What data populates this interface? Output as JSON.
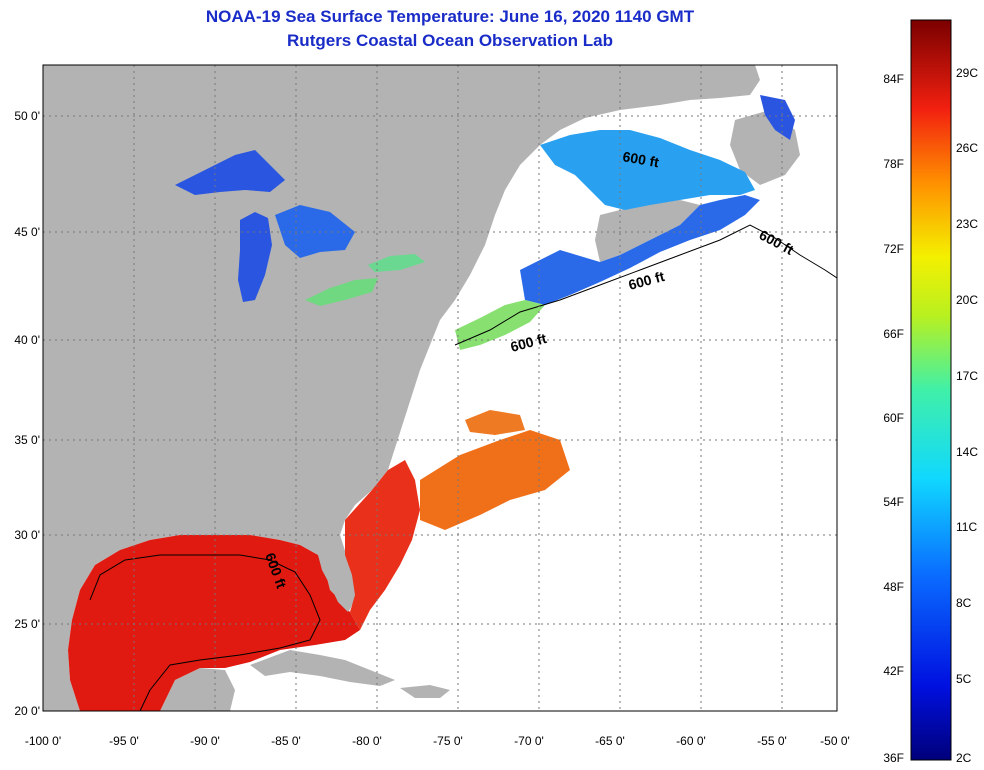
{
  "title": {
    "line1": "NOAA-19 Sea Surface Temperature:  June 16, 2020 1140 GMT",
    "line2": "Rutgers Coastal Ocean Observation Lab"
  },
  "map": {
    "longitudes": [
      "-100 0'",
      "-95 0'",
      "-90 0'",
      "-85 0'",
      "-80 0'",
      "-75 0'",
      "-70 0'",
      "-65 0'",
      "-60 0'",
      "-55 0'",
      "-50 0'"
    ],
    "latitudes": [
      "50 0'",
      "45 0'",
      "40 0'",
      "35 0'",
      "30 0'",
      "25 0'",
      "20 0'"
    ],
    "contour_label": "600 ft"
  },
  "colorbar": {
    "fahrenheit": [
      "84F",
      "78F",
      "72F",
      "66F",
      "60F",
      "54F",
      "48F",
      "42F",
      "36F"
    ],
    "celsius": [
      "29C",
      "26C",
      "23C",
      "20C",
      "17C",
      "14C",
      "11C",
      "8C",
      "5C",
      "2C"
    ]
  },
  "colors": {
    "title": "#1a2cc8",
    "land": "#b3b3b3",
    "ocean_no_data": "#ffffff",
    "warm": "#e01a10",
    "cold": "#2a55e0"
  }
}
